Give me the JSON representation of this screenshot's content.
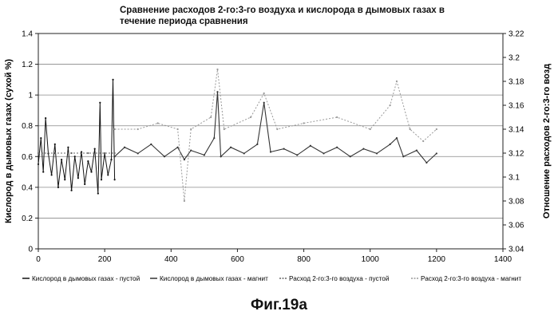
{
  "title_lines": [
    "Сравнение расходов 2-го:3-го воздуха и кислорода в дымовых газах в",
    "течение периода сравнения"
  ],
  "figure_caption": "Фиг.19а",
  "chart_data": {
    "type": "line",
    "title": "Сравнение расходов 2-го:3-го воздуха и кислорода в дымовых газах в течение периода сравнения",
    "xlabel": "",
    "ylabel": "Кислород в дымовых газах (сухой %)",
    "y2label": "Отношение расходов 2-го:3-го возд",
    "xlim": [
      0,
      1400
    ],
    "ylim": [
      0,
      1.4
    ],
    "y2lim": [
      3.04,
      3.22
    ],
    "x_ticks": [
      0,
      200,
      400,
      600,
      800,
      1000,
      1200,
      1400
    ],
    "y_ticks": [
      0,
      0.2,
      0.4,
      0.6,
      0.8,
      1,
      1.2,
      1.4
    ],
    "y2_ticks": [
      3.04,
      3.06,
      3.08,
      3.1,
      3.12,
      3.14,
      3.16,
      3.18,
      3.2,
      3.22
    ],
    "grid": "horizontal",
    "legend_position": "bottom",
    "series": [
      {
        "name": "Кислород в дымовых газах - пустой",
        "axis": "left",
        "color": "#111111",
        "points": [
          [
            0,
            0.55
          ],
          [
            8,
            0.72
          ],
          [
            15,
            0.5
          ],
          [
            22,
            0.85
          ],
          [
            30,
            0.62
          ],
          [
            40,
            0.48
          ],
          [
            50,
            0.68
          ],
          [
            60,
            0.4
          ],
          [
            70,
            0.58
          ],
          [
            80,
            0.45
          ],
          [
            90,
            0.66
          ],
          [
            100,
            0.38
          ],
          [
            110,
            0.6
          ],
          [
            120,
            0.46
          ],
          [
            130,
            0.63
          ],
          [
            140,
            0.42
          ],
          [
            150,
            0.57
          ],
          [
            160,
            0.5
          ],
          [
            170,
            0.65
          ],
          [
            180,
            0.36
          ],
          [
            186,
            0.95
          ],
          [
            190,
            0.45
          ],
          [
            200,
            0.62
          ],
          [
            210,
            0.48
          ],
          [
            220,
            0.58
          ],
          [
            225,
            1.1
          ],
          [
            230,
            0.45
          ]
        ]
      },
      {
        "name": "Кислород в дымовых газах - магнит",
        "axis": "left",
        "color": "#333333",
        "points": [
          [
            230,
            0.6
          ],
          [
            260,
            0.66
          ],
          [
            300,
            0.62
          ],
          [
            340,
            0.68
          ],
          [
            380,
            0.6
          ],
          [
            420,
            0.66
          ],
          [
            440,
            0.58
          ],
          [
            460,
            0.64
          ],
          [
            500,
            0.61
          ],
          [
            530,
            0.72
          ],
          [
            540,
            1.02
          ],
          [
            550,
            0.6
          ],
          [
            580,
            0.66
          ],
          [
            620,
            0.62
          ],
          [
            660,
            0.68
          ],
          [
            680,
            0.95
          ],
          [
            700,
            0.63
          ],
          [
            740,
            0.65
          ],
          [
            780,
            0.61
          ],
          [
            820,
            0.67
          ],
          [
            860,
            0.62
          ],
          [
            900,
            0.66
          ],
          [
            940,
            0.6
          ],
          [
            980,
            0.65
          ],
          [
            1020,
            0.62
          ],
          [
            1060,
            0.68
          ],
          [
            1080,
            0.72
          ],
          [
            1100,
            0.6
          ],
          [
            1140,
            0.64
          ],
          [
            1170,
            0.56
          ],
          [
            1200,
            0.62
          ]
        ]
      },
      {
        "name": "Расход 2-го:3-го воздуха - пустой",
        "axis": "right",
        "color": "#666666",
        "points": [
          [
            0,
            3.12
          ],
          [
            50,
            3.12
          ],
          [
            100,
            3.12
          ],
          [
            150,
            3.12
          ],
          [
            200,
            3.12
          ],
          [
            230,
            3.12
          ]
        ]
      },
      {
        "name": "Расход 2-го:3-го воздуха - магнит",
        "axis": "right",
        "color": "#999999",
        "points": [
          [
            230,
            3.14
          ],
          [
            300,
            3.14
          ],
          [
            360,
            3.145
          ],
          [
            420,
            3.14
          ],
          [
            440,
            3.08
          ],
          [
            460,
            3.14
          ],
          [
            520,
            3.15
          ],
          [
            540,
            3.19
          ],
          [
            560,
            3.14
          ],
          [
            640,
            3.15
          ],
          [
            680,
            3.17
          ],
          [
            720,
            3.14
          ],
          [
            800,
            3.145
          ],
          [
            900,
            3.15
          ],
          [
            1000,
            3.14
          ],
          [
            1060,
            3.16
          ],
          [
            1080,
            3.18
          ],
          [
            1120,
            3.14
          ],
          [
            1160,
            3.13
          ],
          [
            1200,
            3.14
          ]
        ]
      }
    ]
  }
}
